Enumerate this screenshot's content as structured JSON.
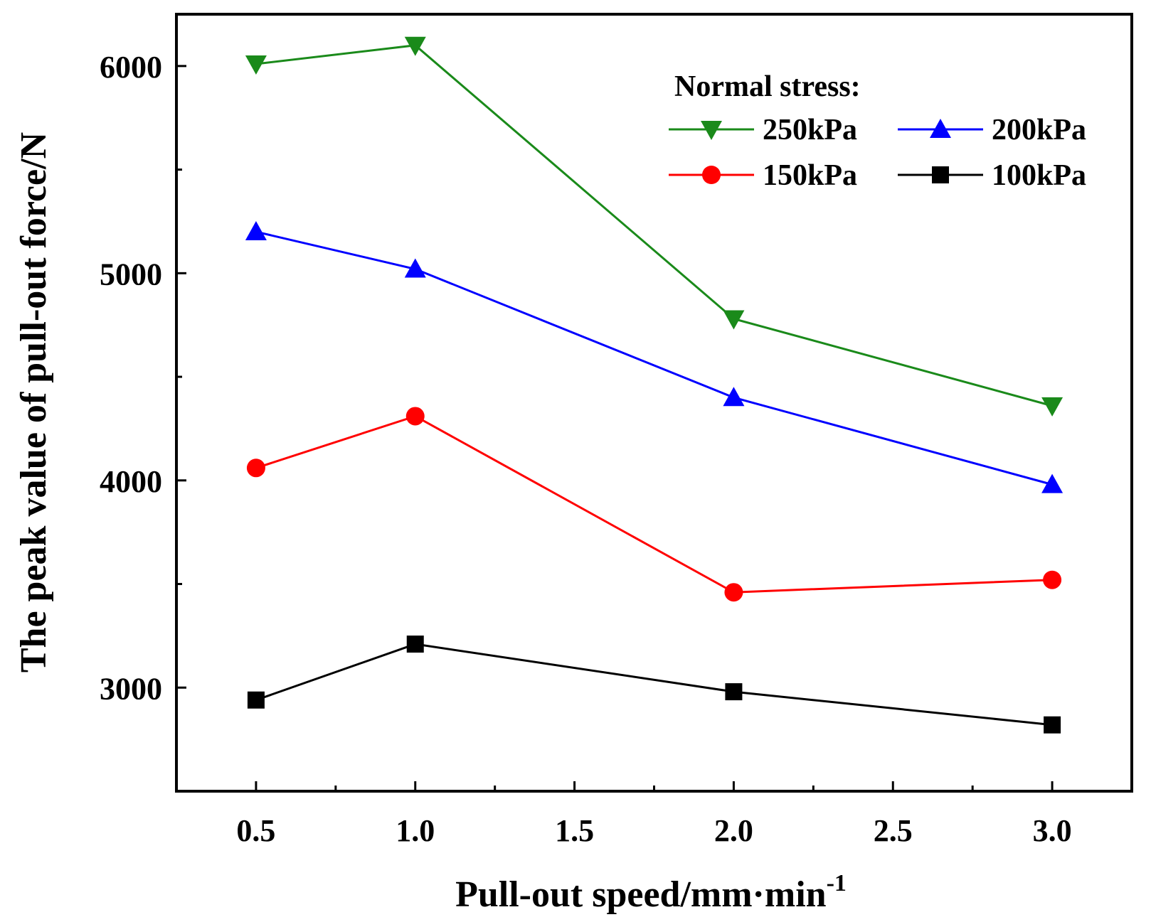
{
  "chart_data": {
    "type": "line",
    "title": "",
    "xlabel": "Pull-out speed/mm·min",
    "xlabel_superscript": "-1",
    "ylabel": "The peak value of pull-out force/N",
    "xlim": [
      0.25,
      3.25
    ],
    "ylim": [
      2500,
      6250
    ],
    "x_ticks": [
      0.5,
      1.0,
      1.5,
      2.0,
      2.5,
      3.0
    ],
    "x_tick_labels": [
      "0.5",
      "1.0",
      "1.5",
      "2.0",
      "2.5",
      "3.0"
    ],
    "y_ticks": [
      3000,
      4000,
      5000,
      6000
    ],
    "y_tick_labels": [
      "3000",
      "4000",
      "5000",
      "6000"
    ],
    "grid": false,
    "legend_title": "Normal stress:",
    "legend_position": "top-right",
    "x": [
      0.5,
      1.0,
      2.0,
      3.0
    ],
    "series": [
      {
        "name": "250kPa",
        "marker": "triangle-down",
        "color": "#1a8a1a",
        "values": [
          6010,
          6100,
          4780,
          4360
        ]
      },
      {
        "name": "200kPa",
        "marker": "triangle-up",
        "color": "#0000ff",
        "values": [
          5200,
          5020,
          4400,
          3980
        ]
      },
      {
        "name": "150kPa",
        "marker": "circle",
        "color": "#ff0000",
        "values": [
          4060,
          4310,
          3460,
          3520
        ]
      },
      {
        "name": "100kPa",
        "marker": "square",
        "color": "#000000",
        "values": [
          2940,
          3210,
          2980,
          2820
        ]
      }
    ]
  }
}
